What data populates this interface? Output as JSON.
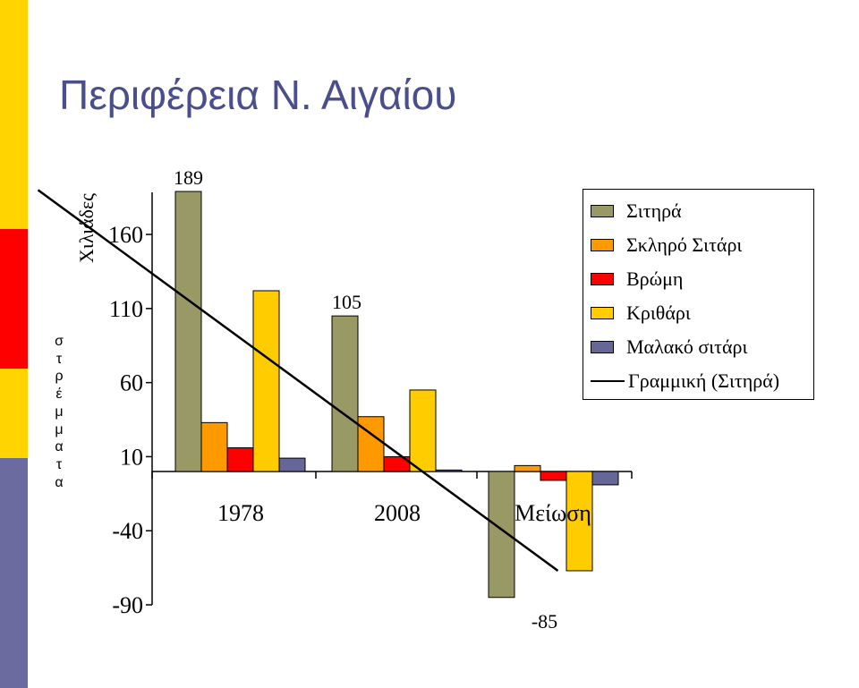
{
  "slide": {
    "title": "Περιφέρεια Ν. Αιγαίου",
    "side_label": "στρέμματα",
    "stripe_colors": [
      "#ffd400",
      "#ff0000",
      "#ffd400",
      "#6b6ba0"
    ]
  },
  "chart_data": {
    "type": "bar",
    "title": "",
    "ylabel": "Χιλιάδες",
    "ylim": [
      -90,
      189
    ],
    "yticks": [
      160,
      110,
      60,
      10,
      -40,
      -90
    ],
    "categories": [
      "1978",
      "2008",
      "Μείωση"
    ],
    "series": [
      {
        "name": "Σιτηρά",
        "color": "#999966",
        "values": [
          189,
          105,
          -85
        ]
      },
      {
        "name": "Σκληρό Σιτάρι",
        "color": "#ff9900",
        "values": [
          33,
          37,
          4
        ]
      },
      {
        "name": "Βρώμη",
        "color": "#ff0000",
        "values": [
          16,
          10,
          -6
        ]
      },
      {
        "name": "Κριθάρι",
        "color": "#ffcc00",
        "values": [
          122,
          55,
          -67
        ]
      },
      {
        "name": "Μαλακό σιτάρι",
        "color": "#666699",
        "values": [
          9,
          1,
          -9
        ]
      }
    ],
    "data_labels": [
      {
        "series": 0,
        "category": 0,
        "text": "189"
      },
      {
        "series": 0,
        "category": 1,
        "text": "105"
      },
      {
        "series": 0,
        "category": 2,
        "text": "-85"
      }
    ],
    "trendline": {
      "name": "Γραμμική (Σιτηρά)",
      "color": "#000000",
      "x": [
        -0.96,
        2.36
      ],
      "y": [
        190,
        -67
      ]
    },
    "legend_position": "top-right",
    "grid": false
  }
}
